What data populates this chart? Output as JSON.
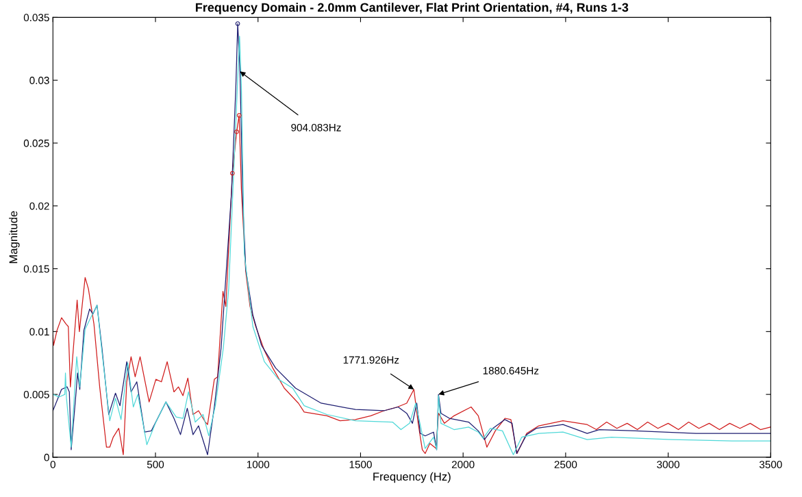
{
  "chart_data": {
    "type": "line",
    "title": "Frequency Domain - 2.0mm Cantilever, Flat Print Orientation, #4, Runs 1-3",
    "xlabel": "Frequency (Hz)",
    "ylabel": "Magnitude",
    "xlim": [
      0,
      3500
    ],
    "xticks": [
      0,
      500,
      1000,
      1500,
      2000,
      2500,
      3000,
      3500
    ],
    "ylim": [
      0,
      0.035
    ],
    "yticks": [
      0,
      0.005,
      0.01,
      0.015,
      0.02,
      0.025,
      0.03,
      0.035
    ],
    "grid": false,
    "marker": "none",
    "line_style": "solid",
    "series": [
      {
        "color": "#d01c1c",
        "x": [
          0,
          3,
          20,
          42,
          64,
          75,
          85,
          118,
          129,
          157,
          173,
          200,
          228,
          261,
          277,
          294,
          321,
          343,
          360,
          381,
          401,
          425,
          469,
          502,
          529,
          557,
          590,
          612,
          634,
          658,
          683,
          710,
          743,
          754,
          787,
          803,
          829,
          843,
          875,
          896,
          908,
          919,
          940,
          961,
          989,
          1031,
          1072,
          1128,
          1197,
          1225,
          1336,
          1400,
          1475,
          1550,
          1614,
          1680,
          1725,
          1760,
          1781,
          1801,
          1815,
          1838,
          1868,
          1880,
          1909,
          1956,
          2039,
          2074,
          2116,
          2157,
          2204,
          2233,
          2263,
          2310,
          2369,
          2487,
          2605,
          2650,
          2700,
          2750,
          2800,
          2850,
          2900,
          2950,
          3000,
          3050,
          3100,
          3150,
          3200,
          3250,
          3300,
          3350,
          3400,
          3450,
          3500
        ],
        "values": [
          0.0097,
          0.0089,
          0.0101,
          0.0111,
          0.0106,
          0.0104,
          0.0056,
          0.0125,
          0.01,
          0.0143,
          0.0134,
          0.0106,
          0.0056,
          0.0008,
          0.0008,
          0.0016,
          0.0023,
          0.0002,
          0.006,
          0.008,
          0.0064,
          0.008,
          0.0044,
          0.0062,
          0.006,
          0.0076,
          0.0052,
          0.0056,
          0.0049,
          0.0063,
          0.0034,
          0.0037,
          0.0028,
          0.0026,
          0.0062,
          0.0064,
          0.0132,
          0.012,
          0.0226,
          0.0259,
          0.0272,
          0.0213,
          0.0148,
          0.012,
          0.0104,
          0.0085,
          0.0071,
          0.0055,
          0.0043,
          0.0036,
          0.0033,
          0.0029,
          0.003,
          0.0033,
          0.0037,
          0.004,
          0.0043,
          0.0054,
          0.0027,
          0.0006,
          0.0003,
          0.0011,
          0.0007,
          0.0035,
          0.0027,
          0.0033,
          0.004,
          0.0033,
          0.0008,
          0.0021,
          0.0031,
          0.003,
          0.0003,
          0.0019,
          0.0025,
          0.0029,
          0.0026,
          0.0022,
          0.0028,
          0.0023,
          0.0027,
          0.0022,
          0.0028,
          0.0023,
          0.0027,
          0.0022,
          0.0028,
          0.0023,
          0.0027,
          0.0022,
          0.0027,
          0.0023,
          0.0027,
          0.0022,
          0.0024
        ]
      },
      {
        "color": "#1c1c70",
        "x": [
          0,
          42,
          69,
          80,
          89,
          113,
          120,
          131,
          151,
          179,
          195,
          215,
          239,
          272,
          305,
          327,
          360,
          381,
          409,
          447,
          480,
          551,
          590,
          622,
          655,
          683,
          710,
          754,
          787,
          820,
          871,
          892,
          901,
          912,
          926,
          940,
          975,
          1017,
          1086,
          1183,
          1308,
          1475,
          1614,
          1683,
          1725,
          1753,
          1774,
          1791,
          1815,
          1856,
          1871,
          1880,
          1892,
          1933,
          2027,
          2074,
          2104,
          2145,
          2204,
          2239,
          2261,
          2310,
          2357,
          2487,
          2605,
          2664,
          2841,
          3135,
          3500
        ],
        "values": [
          0.0037,
          0.0054,
          0.0056,
          0.0052,
          0.0006,
          0.0052,
          0.0067,
          0.0054,
          0.0101,
          0.0118,
          0.0114,
          0.0121,
          0.0087,
          0.0034,
          0.0051,
          0.0041,
          0.0076,
          0.0052,
          0.006,
          0.002,
          0.0021,
          0.0044,
          0.0031,
          0.0018,
          0.0039,
          0.0018,
          0.0025,
          0.0002,
          0.004,
          0.0087,
          0.0211,
          0.0295,
          0.0345,
          0.0307,
          0.0202,
          0.015,
          0.0113,
          0.0089,
          0.0071,
          0.0055,
          0.0043,
          0.0038,
          0.0037,
          0.004,
          0.0035,
          0.0027,
          0.0043,
          0.0019,
          0.0017,
          0.002,
          0.0006,
          0.005,
          0.0035,
          0.0031,
          0.0028,
          0.0021,
          0.0014,
          0.0023,
          0.003,
          0.0027,
          0.0003,
          0.0018,
          0.0023,
          0.0026,
          0.0019,
          0.0022,
          0.0021,
          0.0019,
          0.0019
        ]
      },
      {
        "color": "#4fd8d8",
        "x": [
          0,
          31,
          58,
          61,
          66,
          89,
          116,
          131,
          157,
          184,
          215,
          239,
          277,
          305,
          332,
          365,
          392,
          414,
          458,
          502,
          551,
          601,
          634,
          661,
          694,
          732,
          760,
          792,
          831,
          857,
          892,
          910,
          919,
          933,
          975,
          1031,
          1100,
          1169,
          1225,
          1336,
          1475,
          1656,
          1697,
          1739,
          1769,
          1815,
          1856,
          1871,
          1880,
          1892,
          1956,
          2027,
          2074,
          2098,
          2133,
          2192,
          2245,
          2286,
          2369,
          2487,
          2605,
          2723,
          3018,
          3312,
          3500
        ],
        "values": [
          0.005,
          0.0048,
          0.005,
          0.0067,
          0.0047,
          0.0008,
          0.008,
          0.0056,
          0.0102,
          0.0111,
          0.0121,
          0.0084,
          0.0029,
          0.0047,
          0.003,
          0.0075,
          0.004,
          0.005,
          0.001,
          0.0028,
          0.0044,
          0.0032,
          0.0031,
          0.0052,
          0.0028,
          0.0034,
          0.0017,
          0.0041,
          0.0087,
          0.0134,
          0.0267,
          0.0335,
          0.0295,
          0.0162,
          0.0104,
          0.0076,
          0.0062,
          0.0055,
          0.0041,
          0.0034,
          0.0029,
          0.0028,
          0.0022,
          0.0027,
          0.0043,
          0.0007,
          0.0016,
          0.0006,
          0.0049,
          0.0027,
          0.0022,
          0.0024,
          0.002,
          0.0015,
          0.0023,
          0.0021,
          0.0002,
          0.0016,
          0.0019,
          0.002,
          0.0014,
          0.0016,
          0.0014,
          0.0013,
          0.0013
        ]
      },
      {
        "type": "scatter",
        "marker": "circle",
        "color": "#1c1c70",
        "x": [
          901
        ],
        "values": [
          0.0345
        ]
      },
      {
        "type": "scatter",
        "marker": "circle",
        "color": "#d01c1c",
        "x": [
          875,
          896,
          908
        ],
        "values": [
          0.0226,
          0.0259,
          0.0272
        ]
      }
    ],
    "annotations": [
      {
        "text": "904.083Hz",
        "x": 912,
        "y": 0.0307
      },
      {
        "text": "1771.926Hz",
        "x": 1760,
        "y": 0.0054
      },
      {
        "text": "1880.645Hz",
        "x": 1880,
        "y": 0.005
      }
    ]
  }
}
